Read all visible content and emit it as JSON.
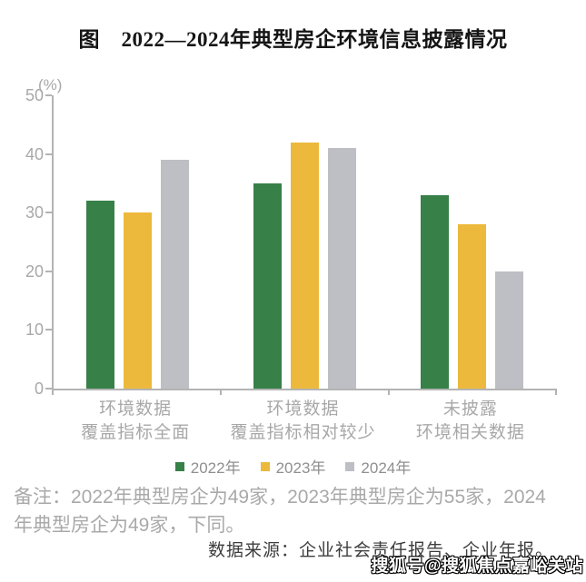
{
  "title": "图　2022—2024年典型房企环境信息披露情况",
  "chart_data": {
    "type": "bar",
    "title": "图 2022—2024年典型房企环境信息披露情况",
    "unit": "(%)",
    "xlabel": "",
    "ylabel": "(%)",
    "categories": [
      "环境数据\n覆盖指标全面",
      "环境数据\n覆盖指标相对较少",
      "未披露\n环境相关数据"
    ],
    "series": [
      {
        "name": "2022年",
        "color": "#378048",
        "values": [
          32,
          35,
          33
        ]
      },
      {
        "name": "2023年",
        "color": "#EDB93C",
        "values": [
          30,
          42,
          28
        ]
      },
      {
        "name": "2024年",
        "color": "#BDBFC4",
        "values": [
          39,
          41,
          20
        ]
      }
    ],
    "ylim": [
      0,
      50
    ],
    "yticks": [
      0,
      10,
      20,
      30,
      40,
      50
    ],
    "grid": false,
    "legend_position": "bottom"
  },
  "note_lines": [
    "备注：2022年典型房企为49家，2023年典型房企为55家，2024",
    "年典型房企为49家，下同。"
  ],
  "source": "数据来源：企业社会责任报告、企业年报。",
  "watermark": "搜狐号@搜狐焦点嘉峪关站",
  "colors": {
    "axis": "#b3b3b3",
    "tick_text": "#a8a8a8",
    "legend_text": "#8f8f8f",
    "note_text": "#a9a9a9",
    "source_text": "#3d3d3d",
    "series_2022": "#378048",
    "series_2023": "#EDB93C",
    "series_2024": "#BDBFC4"
  }
}
